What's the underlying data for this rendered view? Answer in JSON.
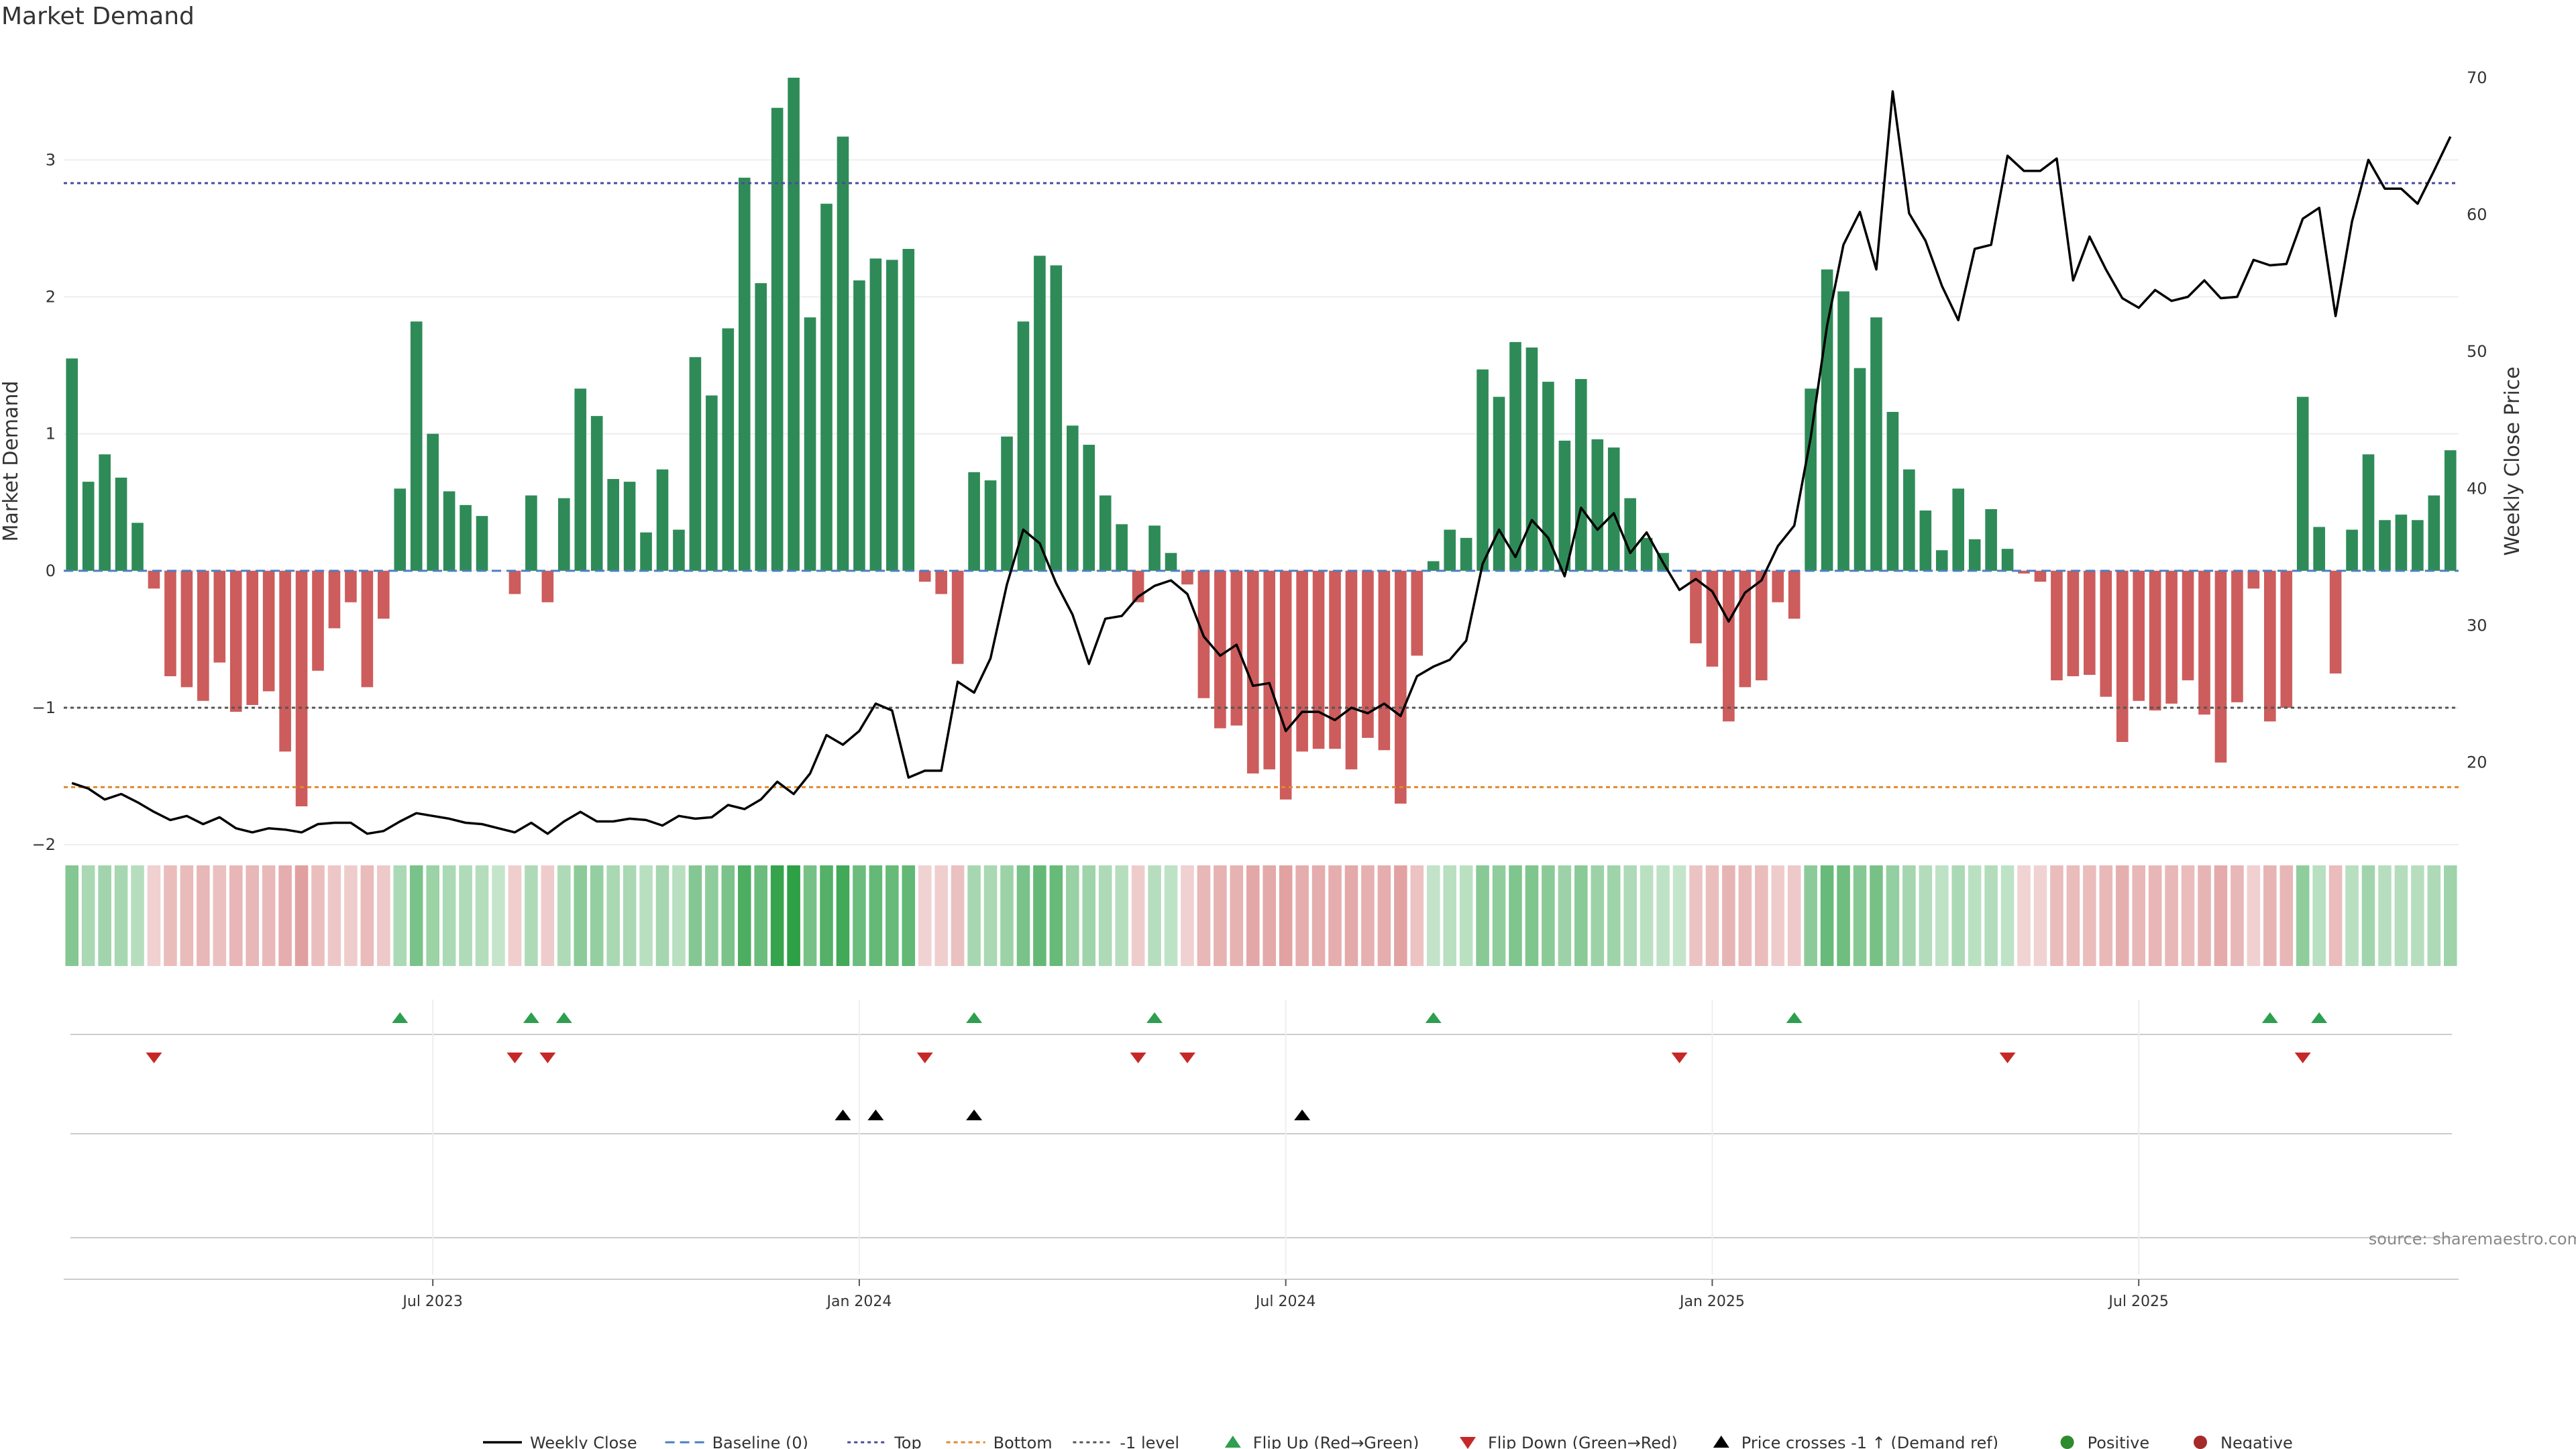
{
  "title": "Market Demand",
  "source": "source: sharemaestro.com",
  "colors": {
    "positive": "#2e8b57",
    "negative": "#cd5c5c",
    "flip_up": "#2e9e4f",
    "flip_down": "#c62828",
    "price": "#000000",
    "top": "#4a4aa0",
    "bottom": "#e08a2c",
    "neg1": "#555555",
    "dot_pos": "#2e8b2e",
    "dot_neg": "#a52a2a"
  },
  "chart_data": {
    "type": "bar",
    "title": "Market Demand",
    "ylabel": "Market Demand",
    "y2label": "Weekly Close Price",
    "ylim": [
      -2.2,
      3.8
    ],
    "y2lim": [
      12,
      72
    ],
    "yticks": [
      -2,
      -1,
      0,
      1,
      2,
      3
    ],
    "y2ticks": [
      20,
      30,
      40,
      50,
      60,
      70
    ],
    "x_ticks": [
      {
        "label": "Jul 2023",
        "index": 22
      },
      {
        "label": "Jan 2024",
        "index": 48
      },
      {
        "label": "Jul 2024",
        "index": 74
      },
      {
        "label": "Jan 2025",
        "index": 100
      },
      {
        "label": "Jul 2025",
        "index": 126
      }
    ],
    "levels": {
      "top": 2.83,
      "bottom": -1.58,
      "neg1": -1.0,
      "baseline": 0
    },
    "demand": [
      1.55,
      0.65,
      0.85,
      0.68,
      0.35,
      -0.13,
      -0.77,
      -0.85,
      -0.95,
      -0.67,
      -1.03,
      -0.98,
      -0.88,
      -1.32,
      -1.72,
      -0.73,
      -0.42,
      -0.23,
      -0.85,
      -0.35,
      0.6,
      1.82,
      1.0,
      0.58,
      0.48,
      0.4,
      0.0,
      -0.17,
      0.55,
      -0.23,
      0.53,
      1.33,
      1.13,
      0.67,
      0.65,
      0.28,
      0.74,
      0.3,
      1.56,
      1.28,
      1.77,
      2.87,
      2.1,
      3.38,
      3.6,
      1.85,
      2.68,
      3.17,
      2.12,
      2.28,
      2.27,
      2.35,
      -0.08,
      -0.17,
      -0.68,
      0.72,
      0.66,
      0.98,
      1.82,
      2.3,
      2.23,
      1.06,
      0.92,
      0.55,
      0.34,
      -0.23,
      0.33,
      0.13,
      -0.1,
      -0.93,
      -1.15,
      -1.13,
      -1.48,
      -1.45,
      -1.67,
      -1.32,
      -1.3,
      -1.3,
      -1.45,
      -1.22,
      -1.31,
      -1.7,
      -0.62,
      0.07,
      0.3,
      0.24,
      1.47,
      1.27,
      1.67,
      1.63,
      1.38,
      0.95,
      1.4,
      0.96,
      0.9,
      0.53,
      0.24,
      0.13,
      0.0,
      -0.53,
      -0.7,
      -1.1,
      -0.85,
      -0.8,
      -0.23,
      -0.35,
      1.33,
      2.2,
      2.04,
      1.48,
      1.85,
      1.16,
      0.74,
      0.44,
      0.15,
      0.6,
      0.23,
      0.45,
      0.16,
      -0.02,
      -0.08,
      -0.8,
      -0.77,
      -0.76,
      -0.92,
      -1.25,
      -0.95,
      -1.02,
      -0.97,
      -0.8,
      -1.05,
      -1.4,
      -0.96,
      -0.13,
      -1.1,
      -1.0,
      1.27,
      0.32,
      -0.75,
      0.3,
      0.85,
      0.37,
      0.41,
      0.37,
      0.55,
      0.88
    ],
    "close": [
      18.5,
      18.1,
      17.3,
      17.7,
      17.1,
      16.4,
      15.8,
      16.1,
      15.5,
      16.0,
      15.2,
      14.9,
      15.2,
      15.1,
      14.9,
      15.5,
      15.6,
      15.6,
      14.8,
      15.0,
      15.7,
      16.3,
      16.1,
      15.9,
      15.6,
      15.5,
      15.2,
      14.9,
      15.6,
      14.8,
      15.7,
      16.4,
      15.7,
      15.7,
      15.9,
      15.8,
      15.4,
      16.1,
      15.9,
      16.0,
      16.9,
      16.6,
      17.3,
      18.6,
      17.7,
      19.2,
      22.0,
      21.3,
      22.3,
      24.3,
      23.8,
      18.9,
      19.4,
      19.4,
      25.9,
      25.1,
      27.6,
      33.0,
      37.0,
      36.0,
      33.1,
      30.8,
      27.2,
      30.5,
      30.7,
      32.1,
      32.9,
      33.3,
      32.3,
      29.2,
      27.8,
      28.6,
      25.6,
      25.8,
      22.3,
      23.7,
      23.7,
      23.1,
      24.0,
      23.6,
      24.3,
      23.4,
      26.3,
      27.0,
      27.5,
      28.9,
      34.5,
      37.0,
      35.0,
      37.7,
      36.4,
      33.6,
      38.6,
      37.0,
      38.2,
      35.3,
      36.8,
      34.6,
      32.6,
      33.4,
      32.5,
      30.3,
      32.4,
      33.3,
      35.8,
      37.3,
      43.7,
      51.9,
      57.8,
      60.2,
      56.0,
      69.0,
      60.1,
      58.1,
      54.8,
      52.3,
      57.5,
      57.8,
      64.3,
      63.2,
      63.2,
      64.1,
      55.2,
      58.4,
      56.0,
      53.9,
      53.2,
      54.5,
      53.7,
      54.0,
      55.2,
      53.9,
      54.0,
      56.7,
      56.3,
      56.4,
      59.7,
      60.5,
      52.6,
      59.5,
      64.0,
      61.9,
      61.9,
      60.8,
      63.2,
      65.7
    ],
    "flip_up_idx": [
      20,
      28,
      30,
      55,
      66,
      83,
      105,
      134,
      137
    ],
    "flip_down_idx": [
      5,
      27,
      29,
      52,
      65,
      68,
      98,
      118,
      136
    ],
    "price_cross_idx": [
      47,
      49,
      55,
      75
    ],
    "legend": [
      {
        "key": "line",
        "label": "Weekly Close"
      },
      {
        "key": "baseline",
        "label": "Baseline (0)"
      },
      {
        "key": "top",
        "label": "Top"
      },
      {
        "key": "bottom",
        "label": "Bottom"
      },
      {
        "key": "neg1",
        "label": "-1 level"
      },
      {
        "key": "flip_up",
        "label": "Flip Up (Red→Green)"
      },
      {
        "key": "flip_down",
        "label": "Flip Down (Green→Red)"
      },
      {
        "key": "cross",
        "label": "Price crosses -1 ↑ (Demand ref)"
      },
      {
        "key": "dot_pos",
        "label": "Positive"
      },
      {
        "key": "dot_neg",
        "label": "Negative"
      }
    ]
  }
}
